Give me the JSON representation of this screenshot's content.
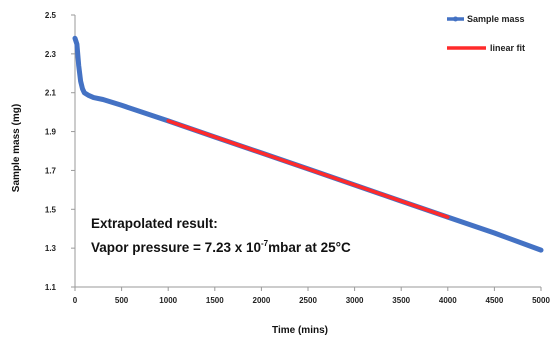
{
  "chart_data": {
    "type": "line",
    "xlabel": "Time (mins)",
    "ylabel": "Sample mass (mg)",
    "xlim": [
      0,
      5000
    ],
    "ylim": [
      1.1,
      2.5
    ],
    "x_ticks": [
      "0",
      "500",
      "1000",
      "1500",
      "2000",
      "2500",
      "3000",
      "3500",
      "4000",
      "4500",
      "5000"
    ],
    "y_ticks": [
      "1.1",
      "1.3",
      "1.5",
      "1.7",
      "1.9",
      "2.1",
      "2.3",
      "2.5"
    ],
    "grid": false,
    "legend_position": "top-right",
    "series": [
      {
        "name": "Sample mass",
        "color": "#4472c4",
        "x": [
          0,
          20,
          40,
          60,
          80,
          100,
          150,
          200,
          300,
          500,
          1000,
          1500,
          2000,
          2500,
          3000,
          3500,
          4000,
          4500,
          5000
        ],
        "y": [
          2.38,
          2.35,
          2.24,
          2.16,
          2.12,
          2.1,
          2.085,
          2.075,
          2.065,
          2.035,
          1.955,
          1.872,
          1.79,
          1.708,
          1.625,
          1.542,
          1.46,
          1.378,
          1.29
        ]
      },
      {
        "name": "linear fit",
        "color": "#ff2a2a",
        "x": [
          1000,
          4000
        ],
        "y": [
          1.955,
          1.46
        ]
      }
    ],
    "annotation": {
      "line1": "Extrapolated result:",
      "line2_prefix": "Vapor pressure = 7.23 x 10",
      "line2_exponent": "-7",
      "line2_suffix": "mbar at 25°C"
    }
  }
}
